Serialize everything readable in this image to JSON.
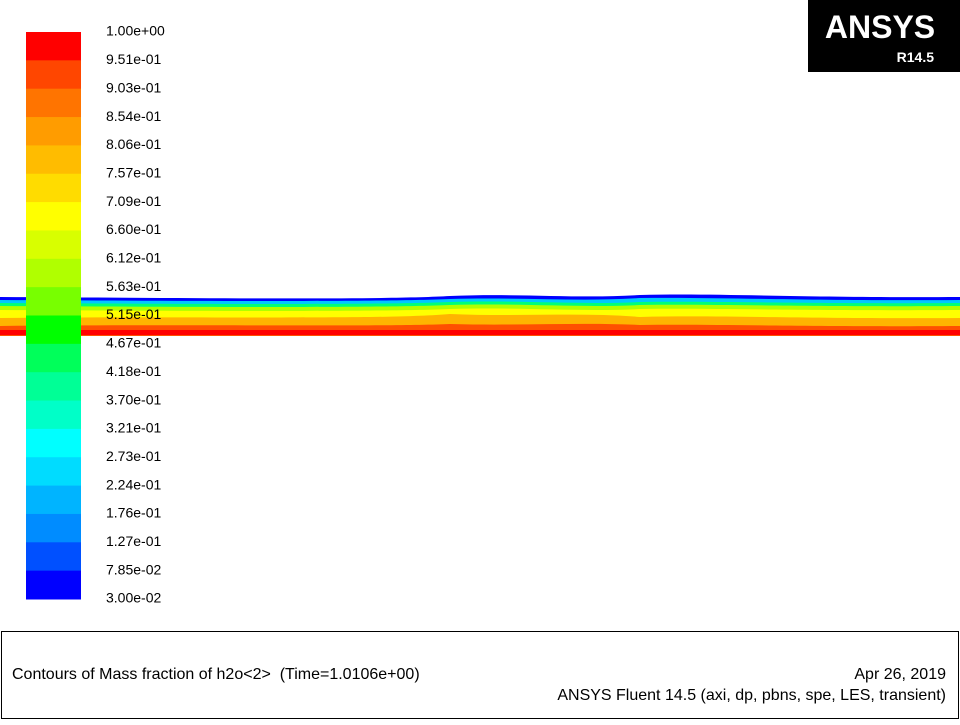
{
  "colorbar": {
    "labels": [
      "1.00e+00",
      "9.51e-01",
      "9.03e-01",
      "8.54e-01",
      "8.06e-01",
      "7.57e-01",
      "7.09e-01",
      "6.60e-01",
      "6.12e-01",
      "5.63e-01",
      "5.15e-01",
      "4.67e-01",
      "4.18e-01",
      "3.70e-01",
      "3.21e-01",
      "2.73e-01",
      "2.24e-01",
      "1.76e-01",
      "1.27e-01",
      "7.85e-02",
      "3.00e-02"
    ],
    "colors": [
      "#ff0000",
      "#ff4600",
      "#ff7400",
      "#ff9c00",
      "#ffbc00",
      "#ffdc00",
      "#ffff00",
      "#d8ff00",
      "#b0ff00",
      "#78ff00",
      "#00ff00",
      "#00ff5a",
      "#00ff96",
      "#00ffc8",
      "#00ffff",
      "#00dcff",
      "#00b4ff",
      "#008cff",
      "#0050ff",
      "#0000ff"
    ]
  },
  "logo": {
    "name": "ANSYS",
    "release": "R14.5"
  },
  "footer": {
    "title": "Contours of Mass fraction of h2o<2>  (Time=1.0106e+00)",
    "date": "Apr 26, 2019",
    "info": "ANSYS Fluent 14.5 (axi, dp, pbns, spe, LES, transient)"
  }
}
